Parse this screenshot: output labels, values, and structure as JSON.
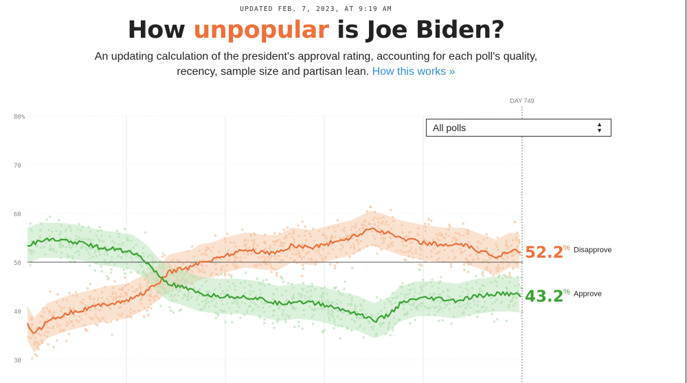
{
  "header": {
    "updated": "UPDATED FEB. 7, 2023, AT 9:19 AM",
    "title_pre": "How ",
    "title_accent": "unpopular",
    "title_post": " is Joe Biden?",
    "dek_line1": "An updating calculation of the president's approval rating, accounting for each poll's quality,",
    "dek_line2": "recency, sample size and partisan lean.",
    "dek_link": "How this works »"
  },
  "controls": {
    "poll_filter_label": "All polls"
  },
  "colors": {
    "disapprove": "#ED713A",
    "approve": "#3BA234",
    "disapprove_band": "#F6C5A4",
    "approve_band": "#B9E3BA",
    "link": "#2D8FD8"
  },
  "chart_data": {
    "type": "line",
    "day_marker": "DAY 749",
    "ylim": [
      30,
      80
    ],
    "y_ticks": [
      "80%",
      "70",
      "60",
      "50",
      "40",
      "30"
    ],
    "x_range_days": [
      0,
      749
    ],
    "series": [
      {
        "name": "Disapprove",
        "current": "52.2",
        "pct": "%",
        "points": [
          [
            0,
            37.5
          ],
          [
            10,
            35
          ],
          [
            30,
            38
          ],
          [
            60,
            39.5
          ],
          [
            90,
            40.5
          ],
          [
            120,
            41.5
          ],
          [
            150,
            42
          ],
          [
            180,
            44
          ],
          [
            200,
            46
          ],
          [
            215,
            48
          ],
          [
            230,
            48.5
          ],
          [
            250,
            49
          ],
          [
            260,
            50
          ],
          [
            280,
            50.5
          ],
          [
            300,
            51.5
          ],
          [
            330,
            52.5
          ],
          [
            360,
            52
          ],
          [
            380,
            52
          ],
          [
            400,
            53.5
          ],
          [
            430,
            53
          ],
          [
            460,
            54
          ],
          [
            490,
            55
          ],
          [
            520,
            57
          ],
          [
            545,
            56
          ],
          [
            565,
            55
          ],
          [
            600,
            54
          ],
          [
            630,
            53.5
          ],
          [
            660,
            53.5
          ],
          [
            690,
            52
          ],
          [
            710,
            51
          ],
          [
            730,
            52.5
          ],
          [
            749,
            52.2
          ]
        ]
      },
      {
        "name": "Approve",
        "current": "43.2",
        "pct": "%",
        "points": [
          [
            0,
            53.5
          ],
          [
            20,
            54.5
          ],
          [
            50,
            54.5
          ],
          [
            80,
            54
          ],
          [
            110,
            53
          ],
          [
            140,
            52.5
          ],
          [
            160,
            52
          ],
          [
            180,
            50
          ],
          [
            200,
            47
          ],
          [
            215,
            45.5
          ],
          [
            230,
            45
          ],
          [
            260,
            43.5
          ],
          [
            290,
            43
          ],
          [
            320,
            43
          ],
          [
            350,
            42.5
          ],
          [
            380,
            41.5
          ],
          [
            410,
            42
          ],
          [
            440,
            41.5
          ],
          [
            470,
            40.5
          ],
          [
            500,
            39.5
          ],
          [
            525,
            38
          ],
          [
            545,
            39
          ],
          [
            565,
            41.5
          ],
          [
            590,
            42.5
          ],
          [
            620,
            42.5
          ],
          [
            650,
            42
          ],
          [
            680,
            43
          ],
          [
            710,
            43.5
          ],
          [
            730,
            43.5
          ],
          [
            749,
            43.2
          ]
        ]
      }
    ]
  }
}
